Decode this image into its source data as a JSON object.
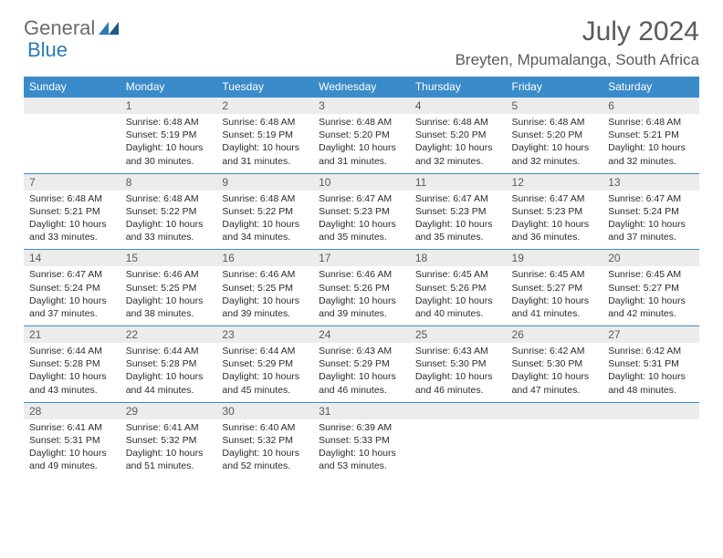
{
  "logo": {
    "text1": "General",
    "text2": "Blue"
  },
  "header": {
    "month": "July 2024",
    "location": "Breyten, Mpumalanga, South Africa"
  },
  "colors": {
    "header_bg": "#3a8bc9",
    "header_text": "#ffffff",
    "num_bg": "#ececec",
    "text": "#2b2b2b",
    "border": "#3a8bc9"
  },
  "weekdays": [
    "Sunday",
    "Monday",
    "Tuesday",
    "Wednesday",
    "Thursday",
    "Friday",
    "Saturday"
  ],
  "weeks": [
    [
      {
        "n": "",
        "sr": "",
        "ss": "",
        "dl": ""
      },
      {
        "n": "1",
        "sr": "6:48 AM",
        "ss": "5:19 PM",
        "dl": "10 hours and 30 minutes."
      },
      {
        "n": "2",
        "sr": "6:48 AM",
        "ss": "5:19 PM",
        "dl": "10 hours and 31 minutes."
      },
      {
        "n": "3",
        "sr": "6:48 AM",
        "ss": "5:20 PM",
        "dl": "10 hours and 31 minutes."
      },
      {
        "n": "4",
        "sr": "6:48 AM",
        "ss": "5:20 PM",
        "dl": "10 hours and 32 minutes."
      },
      {
        "n": "5",
        "sr": "6:48 AM",
        "ss": "5:20 PM",
        "dl": "10 hours and 32 minutes."
      },
      {
        "n": "6",
        "sr": "6:48 AM",
        "ss": "5:21 PM",
        "dl": "10 hours and 32 minutes."
      }
    ],
    [
      {
        "n": "7",
        "sr": "6:48 AM",
        "ss": "5:21 PM",
        "dl": "10 hours and 33 minutes."
      },
      {
        "n": "8",
        "sr": "6:48 AM",
        "ss": "5:22 PM",
        "dl": "10 hours and 33 minutes."
      },
      {
        "n": "9",
        "sr": "6:48 AM",
        "ss": "5:22 PM",
        "dl": "10 hours and 34 minutes."
      },
      {
        "n": "10",
        "sr": "6:47 AM",
        "ss": "5:23 PM",
        "dl": "10 hours and 35 minutes."
      },
      {
        "n": "11",
        "sr": "6:47 AM",
        "ss": "5:23 PM",
        "dl": "10 hours and 35 minutes."
      },
      {
        "n": "12",
        "sr": "6:47 AM",
        "ss": "5:23 PM",
        "dl": "10 hours and 36 minutes."
      },
      {
        "n": "13",
        "sr": "6:47 AM",
        "ss": "5:24 PM",
        "dl": "10 hours and 37 minutes."
      }
    ],
    [
      {
        "n": "14",
        "sr": "6:47 AM",
        "ss": "5:24 PM",
        "dl": "10 hours and 37 minutes."
      },
      {
        "n": "15",
        "sr": "6:46 AM",
        "ss": "5:25 PM",
        "dl": "10 hours and 38 minutes."
      },
      {
        "n": "16",
        "sr": "6:46 AM",
        "ss": "5:25 PM",
        "dl": "10 hours and 39 minutes."
      },
      {
        "n": "17",
        "sr": "6:46 AM",
        "ss": "5:26 PM",
        "dl": "10 hours and 39 minutes."
      },
      {
        "n": "18",
        "sr": "6:45 AM",
        "ss": "5:26 PM",
        "dl": "10 hours and 40 minutes."
      },
      {
        "n": "19",
        "sr": "6:45 AM",
        "ss": "5:27 PM",
        "dl": "10 hours and 41 minutes."
      },
      {
        "n": "20",
        "sr": "6:45 AM",
        "ss": "5:27 PM",
        "dl": "10 hours and 42 minutes."
      }
    ],
    [
      {
        "n": "21",
        "sr": "6:44 AM",
        "ss": "5:28 PM",
        "dl": "10 hours and 43 minutes."
      },
      {
        "n": "22",
        "sr": "6:44 AM",
        "ss": "5:28 PM",
        "dl": "10 hours and 44 minutes."
      },
      {
        "n": "23",
        "sr": "6:44 AM",
        "ss": "5:29 PM",
        "dl": "10 hours and 45 minutes."
      },
      {
        "n": "24",
        "sr": "6:43 AM",
        "ss": "5:29 PM",
        "dl": "10 hours and 46 minutes."
      },
      {
        "n": "25",
        "sr": "6:43 AM",
        "ss": "5:30 PM",
        "dl": "10 hours and 46 minutes."
      },
      {
        "n": "26",
        "sr": "6:42 AM",
        "ss": "5:30 PM",
        "dl": "10 hours and 47 minutes."
      },
      {
        "n": "27",
        "sr": "6:42 AM",
        "ss": "5:31 PM",
        "dl": "10 hours and 48 minutes."
      }
    ],
    [
      {
        "n": "28",
        "sr": "6:41 AM",
        "ss": "5:31 PM",
        "dl": "10 hours and 49 minutes."
      },
      {
        "n": "29",
        "sr": "6:41 AM",
        "ss": "5:32 PM",
        "dl": "10 hours and 51 minutes."
      },
      {
        "n": "30",
        "sr": "6:40 AM",
        "ss": "5:32 PM",
        "dl": "10 hours and 52 minutes."
      },
      {
        "n": "31",
        "sr": "6:39 AM",
        "ss": "5:33 PM",
        "dl": "10 hours and 53 minutes."
      },
      {
        "n": "",
        "sr": "",
        "ss": "",
        "dl": ""
      },
      {
        "n": "",
        "sr": "",
        "ss": "",
        "dl": ""
      },
      {
        "n": "",
        "sr": "",
        "ss": "",
        "dl": ""
      }
    ]
  ],
  "labels": {
    "sunrise": "Sunrise: ",
    "sunset": "Sunset: ",
    "daylight": "Daylight: "
  }
}
